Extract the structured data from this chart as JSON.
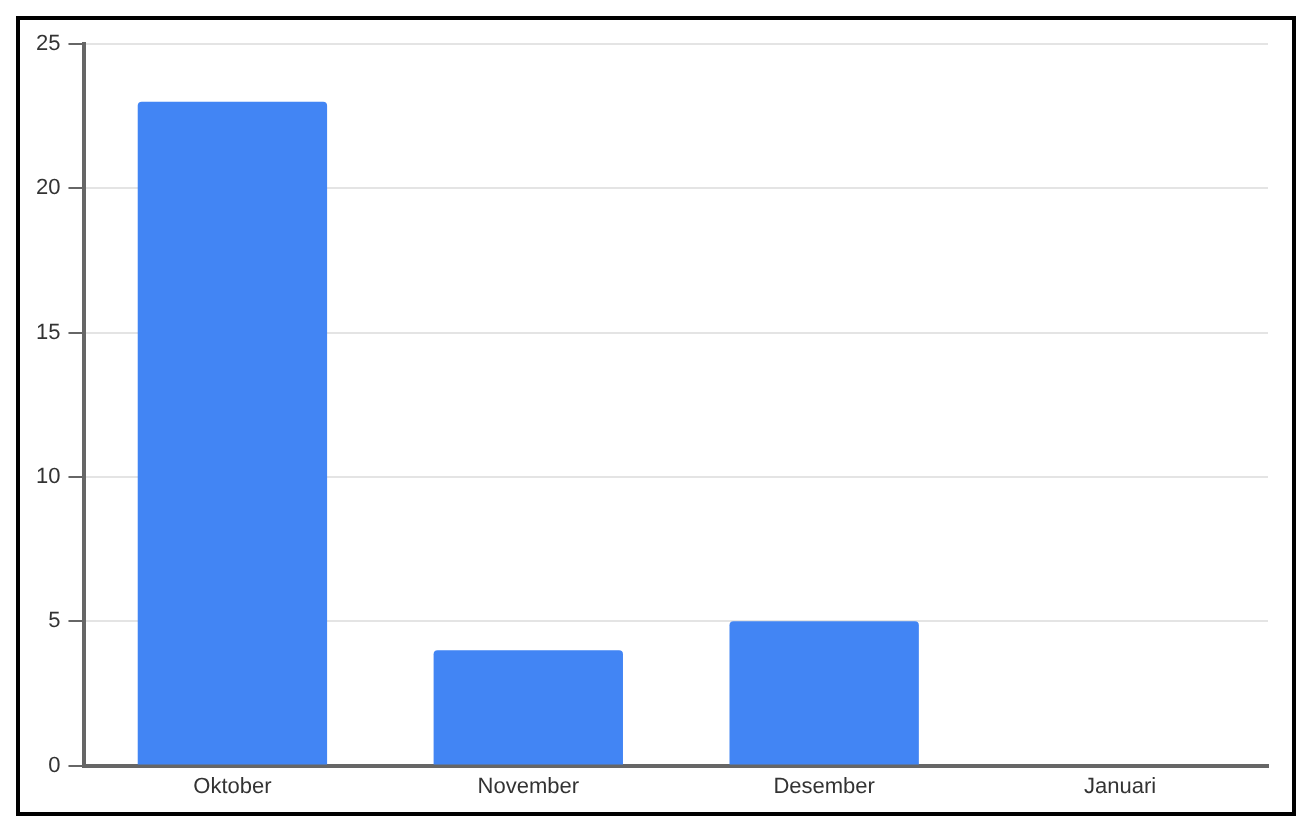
{
  "chart_data": {
    "type": "bar",
    "categories": [
      "Oktober",
      "November",
      "Desember",
      "Januari"
    ],
    "values": [
      23,
      4,
      5,
      0
    ],
    "color": "#4285f4",
    "ylim": [
      0,
      25
    ],
    "yticks": [
      0,
      5,
      10,
      15,
      20,
      25
    ],
    "grid": "y"
  }
}
